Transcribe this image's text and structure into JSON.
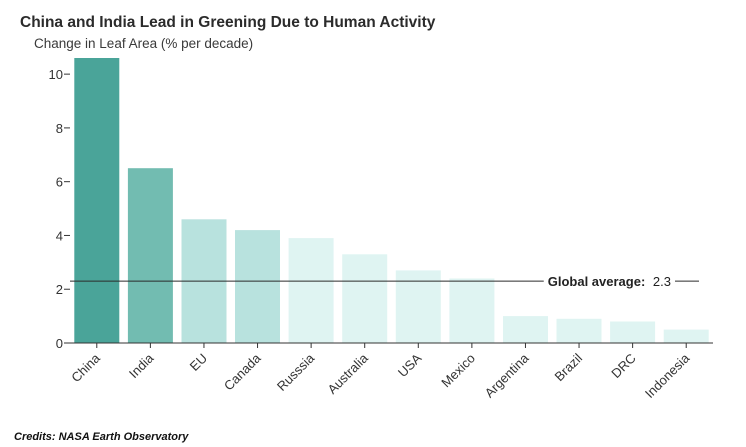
{
  "chart_data": {
    "type": "bar",
    "title": "China and India Lead in Greening Due to Human Activity",
    "subtitle": "Change in Leaf Area (% per decade)",
    "categories": [
      "China",
      "India",
      "EU",
      "Canada",
      "Russsia",
      "Australia",
      "USA",
      "Mexico",
      "Argentina",
      "Brazil",
      "DRC",
      "Indonesia"
    ],
    "values": [
      10.6,
      6.5,
      4.6,
      4.2,
      3.9,
      3.3,
      2.7,
      2.4,
      1.0,
      0.9,
      0.8,
      0.5
    ],
    "colors": [
      "#4aa499",
      "#72bcb1",
      "#b8e2de",
      "#b8e2de",
      "#dff4f2",
      "#dff4f2",
      "#dff4f2",
      "#dff4f2",
      "#dff4f2",
      "#dff4f2",
      "#dff4f2",
      "#dff4f2"
    ],
    "ylim": [
      0,
      10.6
    ],
    "yticks": [
      0,
      2,
      4,
      6,
      8,
      10
    ],
    "grid": false,
    "reference_line": {
      "value": 2.3,
      "label_bold": "Global average:",
      "label_value": "2.3"
    }
  },
  "credits": "Credits: NASA Earth Observatory"
}
